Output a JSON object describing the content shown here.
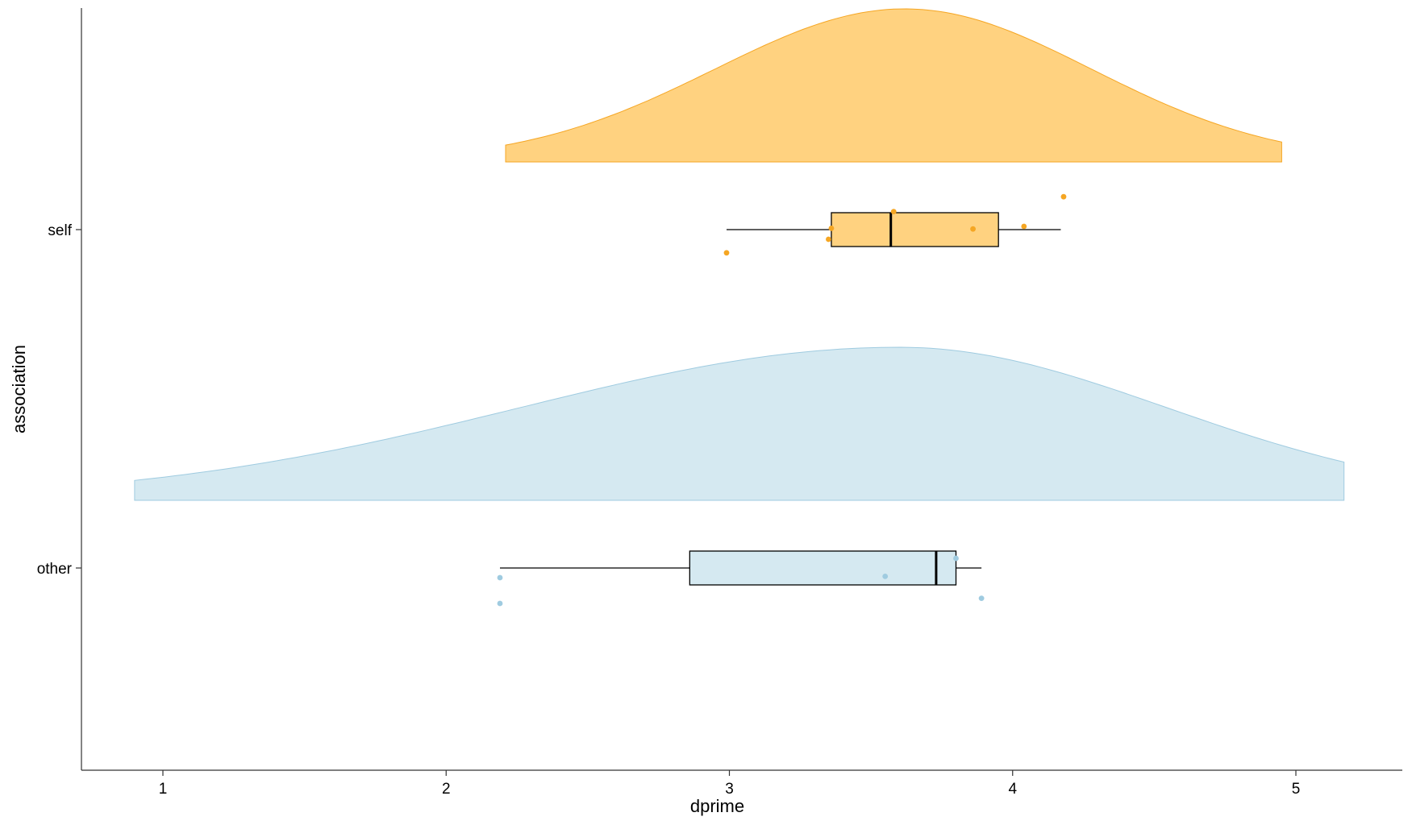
{
  "chart_data": {
    "type": "raincloud",
    "xlabel": "dprime",
    "ylabel": "association",
    "xlim": [
      0.7,
      5.4
    ],
    "x_ticks": [
      1,
      2,
      3,
      4,
      5
    ],
    "x_tick_labels": [
      "1",
      "2",
      "3",
      "4",
      "5"
    ],
    "categories": [
      "self",
      "other"
    ],
    "grid": false,
    "legend": "none",
    "series": [
      {
        "name": "self",
        "color": "#F5A623",
        "fill": "#FFD280",
        "density_range": [
          2.21,
          4.95
        ],
        "density_peak": 3.62,
        "density_end_heights": [
          0.11,
          0.13
        ],
        "box": {
          "min": 2.99,
          "q1": 3.36,
          "median": 3.57,
          "q3": 3.95,
          "max": 4.17
        },
        "points": [
          {
            "x": 2.99,
            "jitter": -0.36
          },
          {
            "x": 3.35,
            "jitter": -0.15
          },
          {
            "x": 3.36,
            "jitter": 0.02
          },
          {
            "x": 3.58,
            "jitter": 0.28
          },
          {
            "x": 3.86,
            "jitter": 0.01
          },
          {
            "x": 4.04,
            "jitter": 0.05
          },
          {
            "x": 4.18,
            "jitter": 0.51
          }
        ]
      },
      {
        "name": "other",
        "color": "#9FCBE0",
        "fill": "#D5E9F1",
        "density_range": [
          0.9,
          5.17
        ],
        "density_peak": 3.6,
        "density_end_heights": [
          0.13,
          0.25
        ],
        "box": {
          "min": 2.19,
          "q1": 2.86,
          "median": 3.73,
          "q3": 3.8,
          "max": 3.89
        },
        "points": [
          {
            "x": 2.19,
            "jitter": -0.15
          },
          {
            "x": 2.19,
            "jitter": -0.55
          },
          {
            "x": 3.55,
            "jitter": -0.13
          },
          {
            "x": 3.8,
            "jitter": 0.15
          },
          {
            "x": 3.89,
            "jitter": -0.47
          }
        ]
      }
    ]
  }
}
